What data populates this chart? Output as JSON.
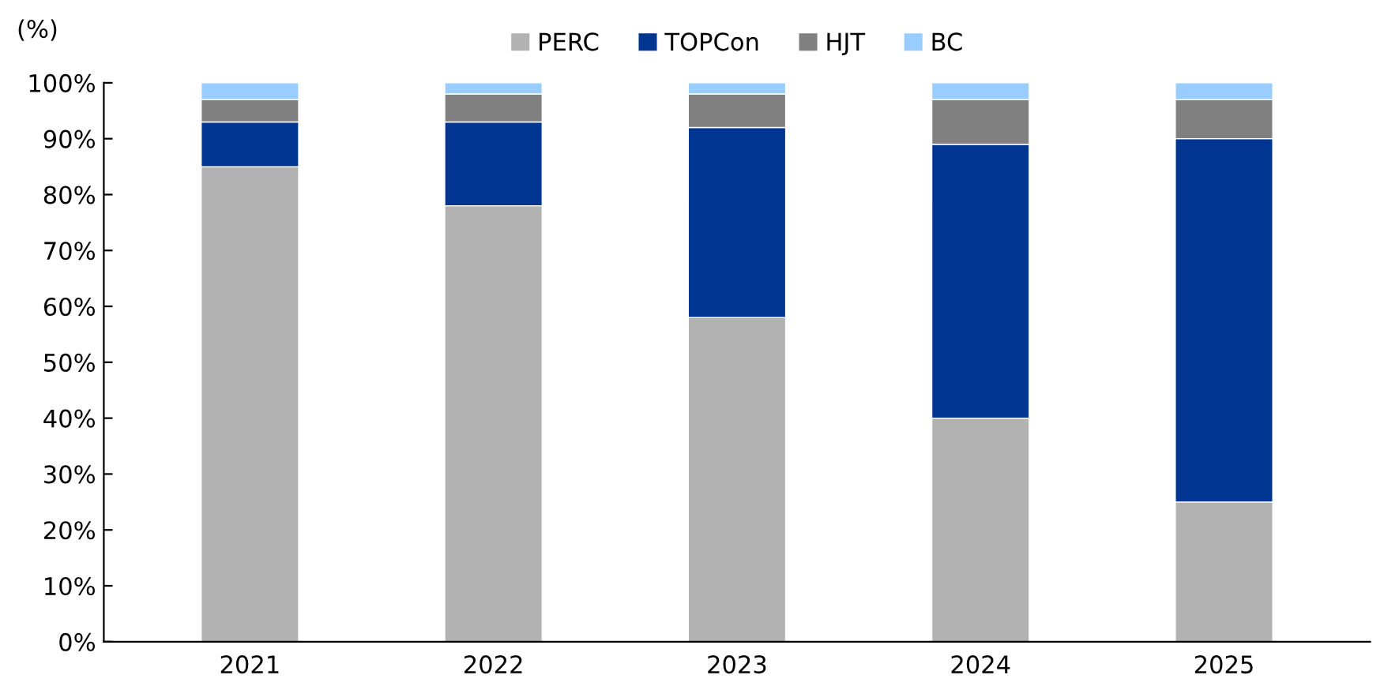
{
  "chart_data": {
    "type": "bar",
    "stacked": true,
    "ylabel": "(%)",
    "categories": [
      "2021",
      "2022",
      "2023",
      "2024",
      "2025"
    ],
    "series": [
      {
        "name": "PERC",
        "color": "#b2b2b2",
        "values": [
          85,
          78,
          58,
          40,
          25
        ]
      },
      {
        "name": "TOPCon",
        "color": "#003591",
        "values": [
          8,
          15,
          34,
          49,
          65
        ]
      },
      {
        "name": "HJT",
        "color": "#808080",
        "values": [
          4,
          5,
          6,
          8,
          7
        ]
      },
      {
        "name": "BC",
        "color": "#99ccff",
        "values": [
          3,
          2,
          2,
          3,
          3
        ]
      }
    ],
    "ylim": [
      0,
      100
    ],
    "yticks": [
      {
        "value": 0,
        "label": "0%"
      },
      {
        "value": 10,
        "label": "10%"
      },
      {
        "value": 20,
        "label": "20%"
      },
      {
        "value": 30,
        "label": "30%"
      },
      {
        "value": 40,
        "label": "40%"
      },
      {
        "value": 50,
        "label": "50%"
      },
      {
        "value": 60,
        "label": "60%"
      },
      {
        "value": 70,
        "label": "70%"
      },
      {
        "value": 80,
        "label": "80%"
      },
      {
        "value": 90,
        "label": "90%"
      },
      {
        "value": 100,
        "label": "100%"
      }
    ],
    "grid": false,
    "legend": "top"
  }
}
